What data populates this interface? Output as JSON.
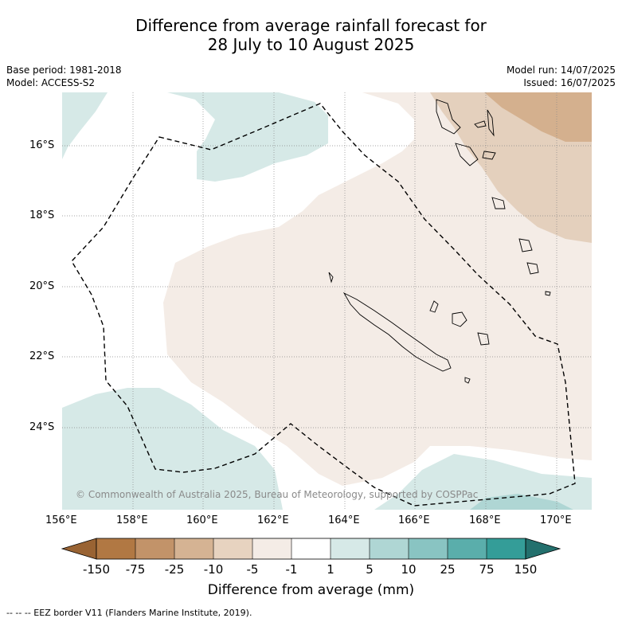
{
  "title_line1": "Difference from average rainfall forecast for",
  "title_line2": "28 July to 10 August 2025",
  "left_meta": {
    "base_period": "Base period: 1981-2018",
    "model": "Model: ACCESS-S2"
  },
  "right_meta": {
    "model_run": "Model run: 14/07/2025",
    "issued": "Issued: 16/07/2025"
  },
  "map": {
    "lat_labels": [
      "16°S",
      "18°S",
      "20°S",
      "22°S",
      "24°S"
    ],
    "lon_labels": [
      "156°E",
      "158°E",
      "160°E",
      "162°E",
      "164°E",
      "166°E",
      "168°E",
      "170°E"
    ],
    "copyright": "© Commonwealth of Australia 2025, Bureau of Meteorology, supported by COSPPac",
    "features": {
      "dry_light": "#f4ece6",
      "dry_medium": "#e4d0bd",
      "dry_strong": "#d4b08e",
      "wet_light": "#d6e9e7",
      "wet_medium": "#afd6d4",
      "eez_border": "dashed"
    }
  },
  "colorbar": {
    "labels": [
      "-150",
      "-75",
      "-25",
      "-10",
      "-5",
      "-1",
      "1",
      "5",
      "10",
      "25",
      "75",
      "150"
    ],
    "colors": [
      "#996333",
      "#b17843",
      "#c29369",
      "#d5b393",
      "#e7d3c0",
      "#f4ece6",
      "#ffffff",
      "#d6e9e7",
      "#afd6d4",
      "#89c4c2",
      "#5aaeab",
      "#349d98",
      "#23706d"
    ],
    "title": "Difference from average (mm)"
  },
  "footnote": "--  --  -- EEZ border V11 (Flanders Marine Institute, 2019)."
}
